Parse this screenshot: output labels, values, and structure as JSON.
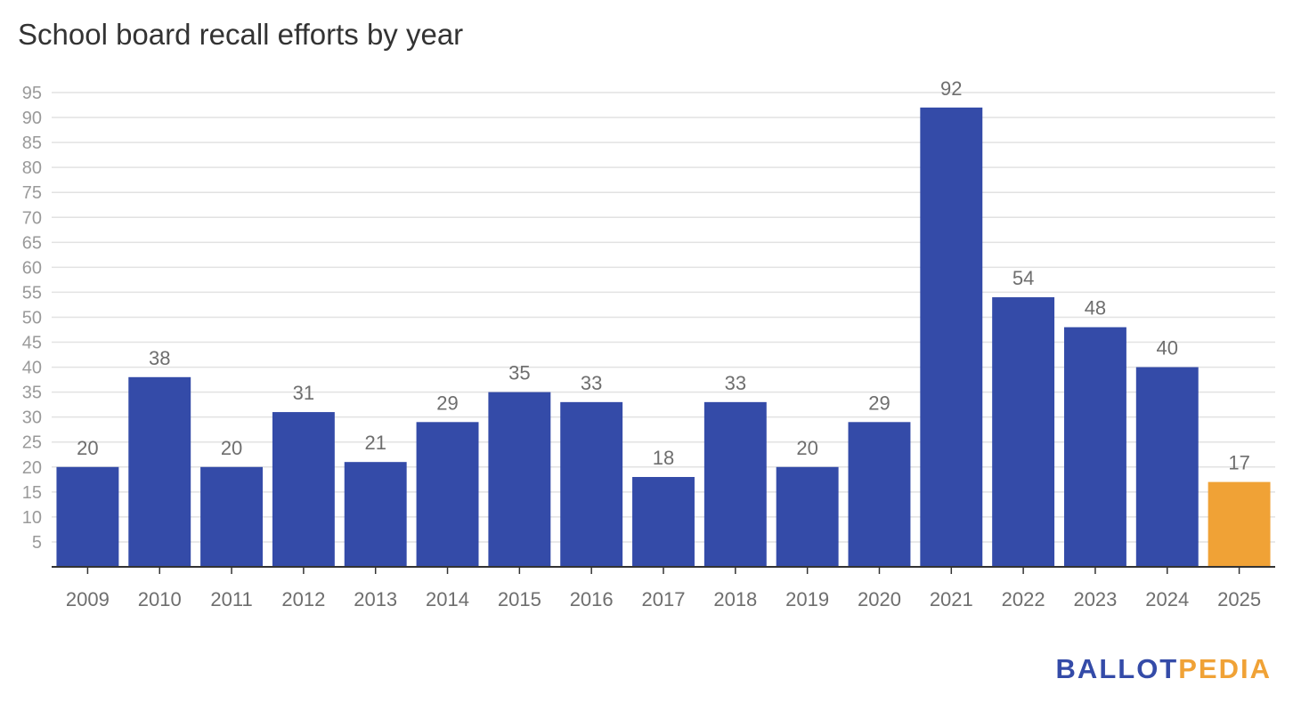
{
  "chart_data": {
    "type": "bar",
    "title": "School board recall efforts by year",
    "xlabel": "",
    "ylabel": "",
    "categories": [
      "2009",
      "2010",
      "2011",
      "2012",
      "2013",
      "2014",
      "2015",
      "2016",
      "2017",
      "2018",
      "2019",
      "2020",
      "2021",
      "2022",
      "2023",
      "2024",
      "2025"
    ],
    "values": [
      20,
      38,
      20,
      31,
      21,
      29,
      35,
      33,
      18,
      33,
      20,
      29,
      92,
      54,
      48,
      40,
      17
    ],
    "highlight_category": "2025",
    "colors": {
      "bar": "#344ba8",
      "highlight": "#f0a236",
      "grid": "#e2e2e2",
      "axis": "#333333"
    },
    "ylim": [
      0,
      95
    ],
    "yticks": [
      5,
      10,
      15,
      20,
      25,
      30,
      35,
      40,
      45,
      50,
      55,
      60,
      65,
      70,
      75,
      80,
      85,
      90,
      95
    ],
    "grid": true,
    "legend": "none"
  },
  "brand": {
    "part1": "BALLOT",
    "part2": "PEDIA",
    "color1": "#344ba8",
    "color2": "#f0a236"
  }
}
